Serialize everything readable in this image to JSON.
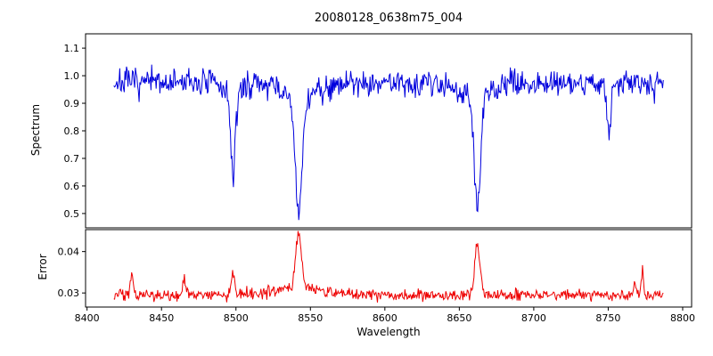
{
  "title": "20080128_0638m75_004",
  "chart_data": {
    "type": "line",
    "title": "20080128_0638m75_004",
    "xlabel": "Wavelength",
    "xlim": [
      8399,
      8806
    ],
    "x_range": [
      8418,
      8787
    ],
    "n_points": 740,
    "x_ticks": [
      8400,
      8450,
      8500,
      8550,
      8600,
      8650,
      8700,
      8750,
      8800
    ],
    "panels": [
      {
        "name": "spectrum",
        "ylabel": "Spectrum",
        "color": "#0000dd",
        "ylim": [
          0.448,
          1.152
        ],
        "y_ticks": [
          0.5,
          0.6,
          0.7,
          0.8,
          0.9,
          1.0,
          1.1
        ],
        "tick_decimals": 1,
        "baseline": 0.975,
        "noise_sigma": 0.025,
        "absorption_lines": [
          {
            "center": 8498.0,
            "depth": 0.3,
            "width": 1.6,
            "wing_depth": 0.035,
            "wing_width": 6
          },
          {
            "center": 8542.1,
            "depth": 0.43,
            "width": 2.2,
            "wing_depth": 0.06,
            "wing_width": 11
          },
          {
            "center": 8662.1,
            "depth": 0.41,
            "width": 2.0,
            "wing_depth": 0.055,
            "wing_width": 10
          },
          {
            "center": 8750.5,
            "depth": 0.18,
            "width": 1.2,
            "wing_depth": 0.02,
            "wing_width": 4
          }
        ]
      },
      {
        "name": "error",
        "ylabel": "Error",
        "color": "#ee0000",
        "ylim": [
          0.0266,
          0.0453
        ],
        "y_ticks": [
          0.03,
          0.04
        ],
        "tick_decimals": 2,
        "baseline": 0.0295,
        "noise_sigma": 0.0007,
        "emission_peaks": [
          {
            "center": 8430.0,
            "height": 0.0055,
            "width": 1.0
          },
          {
            "center": 8465.0,
            "height": 0.0035,
            "width": 1.0
          },
          {
            "center": 8498.0,
            "height": 0.005,
            "width": 1.2
          },
          {
            "center": 8542.1,
            "height": 0.014,
            "width": 2.0
          },
          {
            "center": 8542.1,
            "height": 0.0015,
            "width": 20.0
          },
          {
            "center": 8662.1,
            "height": 0.012,
            "width": 1.8
          },
          {
            "center": 8768.0,
            "height": 0.004,
            "width": 0.8
          },
          {
            "center": 8773.0,
            "height": 0.006,
            "width": 0.8
          }
        ]
      }
    ]
  }
}
